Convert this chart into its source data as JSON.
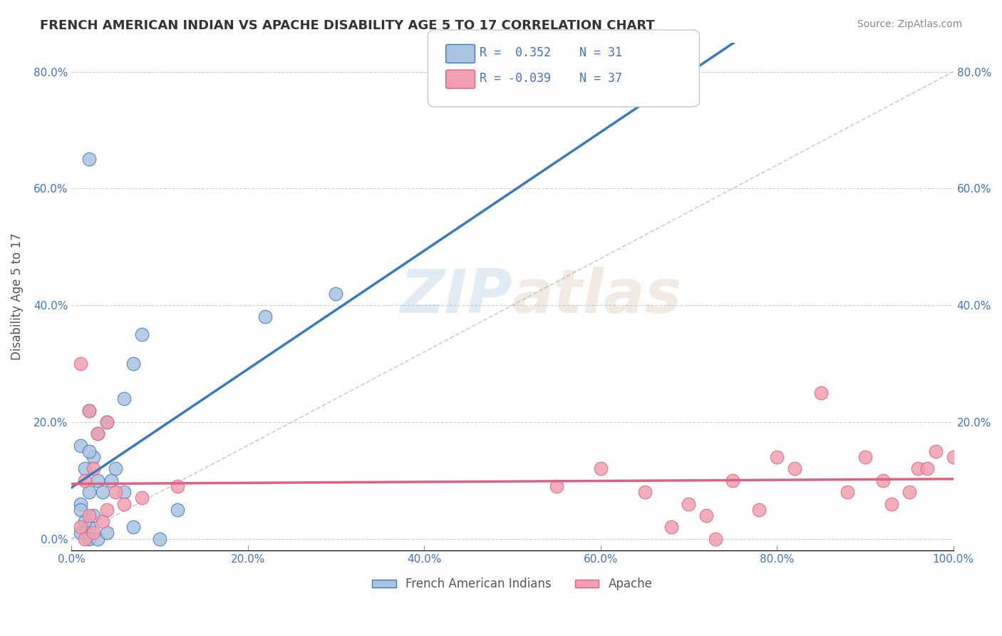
{
  "title": "FRENCH AMERICAN INDIAN VS APACHE DISABILITY AGE 5 TO 17 CORRELATION CHART",
  "source": "Source: ZipAtlas.com",
  "xlabel": "",
  "ylabel": "Disability Age 5 to 17",
  "xlim": [
    0.0,
    1.0
  ],
  "ylim": [
    -0.02,
    0.85
  ],
  "xticks": [
    0.0,
    0.2,
    0.4,
    0.6,
    0.8,
    1.0
  ],
  "xticklabels": [
    "0.0%",
    "20.0%",
    "40.0%",
    "60.0%",
    "80.0%",
    "100.0%"
  ],
  "yticks": [
    0.0,
    0.2,
    0.4,
    0.6,
    0.8
  ],
  "yticklabels": [
    "0.0%",
    "20.0%",
    "40.0%",
    "60.0%",
    "80.0%"
  ],
  "right_yticks": [
    0.0,
    0.2,
    0.4,
    0.6,
    0.8
  ],
  "right_yticklabels": [
    "",
    "20.0%",
    "40.0%",
    "60.0%",
    "80.0%"
  ],
  "blue_r": 0.352,
  "blue_n": 31,
  "pink_r": -0.039,
  "pink_n": 37,
  "blue_color": "#a8c4e0",
  "pink_color": "#f0a0b0",
  "blue_line_color": "#3a7abf",
  "pink_line_color": "#e06080",
  "dashed_line_color": "#b0b8c8",
  "watermark_zip": "ZIP",
  "watermark_atlas": "atlas",
  "legend_text_color": "#4472c4",
  "blue_scatter_x": [
    0.02,
    0.03,
    0.01,
    0.04,
    0.02,
    0.015,
    0.025,
    0.03,
    0.035,
    0.01,
    0.02,
    0.045,
    0.05,
    0.06,
    0.07,
    0.08,
    0.22,
    0.3,
    0.01,
    0.02,
    0.015,
    0.025,
    0.01,
    0.02,
    0.03,
    0.04,
    0.07,
    0.1,
    0.12,
    0.02,
    0.06
  ],
  "blue_scatter_y": [
    0.65,
    0.18,
    0.16,
    0.2,
    0.22,
    0.12,
    0.14,
    0.1,
    0.08,
    0.06,
    0.08,
    0.1,
    0.12,
    0.24,
    0.3,
    0.35,
    0.38,
    0.42,
    0.05,
    0.02,
    0.03,
    0.04,
    0.01,
    0.0,
    0.0,
    0.01,
    0.02,
    0.0,
    0.05,
    0.15,
    0.08
  ],
  "pink_scatter_x": [
    0.01,
    0.02,
    0.03,
    0.015,
    0.025,
    0.04,
    0.05,
    0.06,
    0.02,
    0.01,
    0.015,
    0.025,
    0.035,
    0.04,
    0.08,
    0.12,
    0.6,
    0.65,
    0.7,
    0.72,
    0.75,
    0.8,
    0.82,
    0.85,
    0.9,
    0.92,
    0.95,
    0.96,
    0.98,
    1.0,
    0.68,
    0.73,
    0.78,
    0.88,
    0.93,
    0.97,
    0.55
  ],
  "pink_scatter_y": [
    0.3,
    0.22,
    0.18,
    0.1,
    0.12,
    0.2,
    0.08,
    0.06,
    0.04,
    0.02,
    0.0,
    0.01,
    0.03,
    0.05,
    0.07,
    0.09,
    0.12,
    0.08,
    0.06,
    0.04,
    0.1,
    0.14,
    0.12,
    0.25,
    0.14,
    0.1,
    0.08,
    0.12,
    0.15,
    0.14,
    0.02,
    0.0,
    0.05,
    0.08,
    0.06,
    0.12,
    0.09
  ],
  "tick_color": "#4472c4",
  "grid_color": "#c8d0e0",
  "ylabel_color": "#555555"
}
